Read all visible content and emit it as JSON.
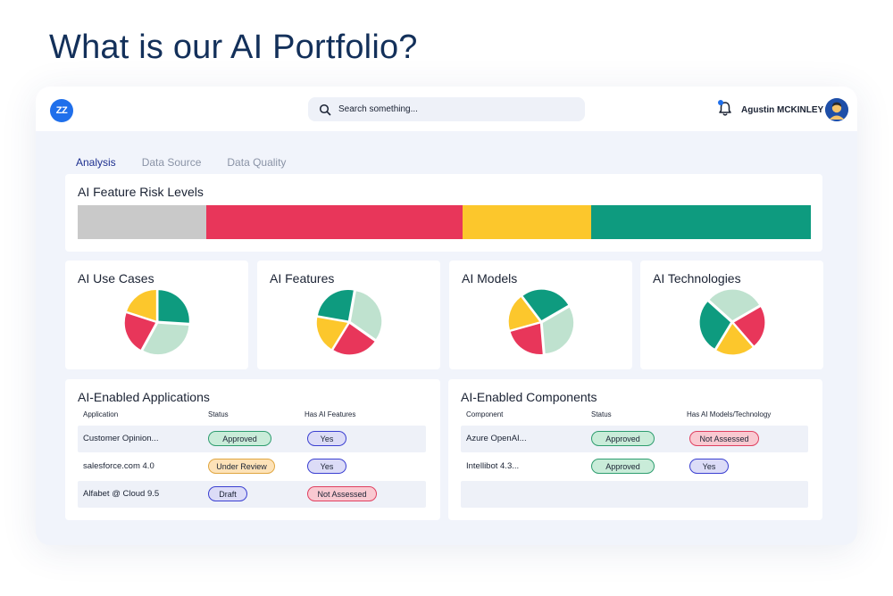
{
  "headline": "What is our AI Portfolio?",
  "topbar": {
    "logo_text": "ZZ",
    "search_placeholder": "Search something...",
    "user_name": "Agustin MCKINLEY"
  },
  "tabs": [
    {
      "label": "Analysis",
      "active": true
    },
    {
      "label": "Data Source",
      "active": false
    },
    {
      "label": "Data Quality",
      "active": false
    }
  ],
  "risk_levels": {
    "title": "AI Feature Risk Levels",
    "segments": [
      {
        "level": "none",
        "share": 0.175,
        "color": "#c9c9c9"
      },
      {
        "level": "high",
        "share": 0.35,
        "color": "#e8365a"
      },
      {
        "level": "medium",
        "share": 0.175,
        "color": "#fcc72c"
      },
      {
        "level": "low",
        "share": 0.3,
        "color": "#0e9b7f"
      }
    ]
  },
  "colors": {
    "green": "#0e9b7f",
    "light_green": "#bfe2cf",
    "red": "#e8365a",
    "yellow": "#fcc72c"
  },
  "pie_cards": [
    {
      "title": "AI Use Cases",
      "slices": [
        {
          "color": "#0e9b7f",
          "value": 26,
          "explode": 1
        },
        {
          "color": "#bfe2cf",
          "value": 32,
          "explode": 1
        },
        {
          "color": "#e8365a",
          "value": 22,
          "explode": 1
        },
        {
          "color": "#fcc72c",
          "value": 20,
          "explode": 1
        }
      ],
      "start": 0
    },
    {
      "title": "AI Features",
      "slices": [
        {
          "color": "#bfe2cf",
          "value": 32,
          "explode": 1
        },
        {
          "color": "#e8365a",
          "value": 24,
          "explode": 1
        },
        {
          "color": "#fcc72c",
          "value": 19,
          "explode": 1
        },
        {
          "color": "#0e9b7f",
          "value": 25,
          "explode": 1
        }
      ],
      "start": 10
    },
    {
      "title": "AI Models",
      "slices": [
        {
          "color": "#bfe2cf",
          "value": 32,
          "explode": 1
        },
        {
          "color": "#e8365a",
          "value": 22,
          "explode": 1
        },
        {
          "color": "#fcc72c",
          "value": 19,
          "explode": 1
        },
        {
          "color": "#0e9b7f",
          "value": 27,
          "explode": 1
        }
      ],
      "start": 60
    },
    {
      "title": "AI Technologies",
      "slices": [
        {
          "color": "#e8365a",
          "value": 22,
          "explode": 1
        },
        {
          "color": "#fcc72c",
          "value": 20,
          "explode": 1
        },
        {
          "color": "#0e9b7f",
          "value": 28,
          "explode": 1
        },
        {
          "color": "#bfe2cf",
          "value": 30,
          "explode": 1
        }
      ],
      "start": 60
    }
  ],
  "applications": {
    "title": "AI-Enabled Applications",
    "headers": [
      "Application",
      "Status",
      "Has AI Features"
    ],
    "rows": [
      {
        "name": "Customer Opinion...",
        "status": "Approved",
        "status_kind": "approved",
        "flag": "Yes",
        "flag_kind": "yes"
      },
      {
        "name": "salesforce.com 4.0",
        "status": "Under Review",
        "status_kind": "review",
        "flag": "Yes",
        "flag_kind": "yes"
      },
      {
        "name": "Alfabet @ Cloud 9.5",
        "status": "Draft",
        "status_kind": "draft",
        "flag": "Not Assessed",
        "flag_kind": "not"
      }
    ]
  },
  "components": {
    "title": "AI-Enabled Components",
    "headers": [
      "Component",
      "Status",
      "Has AI Models/Technology"
    ],
    "rows": [
      {
        "name": "Azure OpenAI...",
        "status": "Approved",
        "status_kind": "approved",
        "flag": "Not Assessed",
        "flag_kind": "not"
      },
      {
        "name": "Intellibot 4.3...",
        "status": "Approved",
        "status_kind": "approved",
        "flag": "Yes",
        "flag_kind": "yes"
      }
    ]
  }
}
